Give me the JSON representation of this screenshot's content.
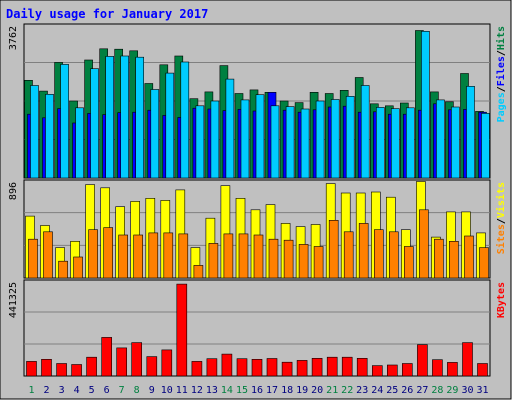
{
  "chart_data": {
    "title": "Daily usage for January 2017",
    "days": [
      "1",
      "2",
      "3",
      "4",
      "5",
      "6",
      "7",
      "8",
      "9",
      "10",
      "11",
      "12",
      "13",
      "14",
      "15",
      "16",
      "17",
      "18",
      "19",
      "20",
      "21",
      "22",
      "23",
      "24",
      "25",
      "26",
      "27",
      "28",
      "29",
      "30",
      "31"
    ],
    "weekend_days": [
      "1",
      "7",
      "8",
      "14",
      "15",
      "21",
      "22",
      "28",
      "29"
    ],
    "panels": [
      {
        "type": "bar",
        "max_label": "3762",
        "ymax": 3762,
        "legend": [
          "Pages",
          "/",
          "Files",
          "/",
          "Hits"
        ],
        "legend_colors": [
          "#00ccff",
          "#000000",
          "#0000ff",
          "#000000",
          "#008040"
        ],
        "series": [
          {
            "name": "Hits",
            "color": "#008040",
            "values": [
              2450,
              2180,
              2900,
              1930,
              2960,
              3240,
              3230,
              3190,
              2370,
              2840,
              3060,
              1990,
              2160,
              2820,
              2120,
              2210,
              2150,
              1930,
              1890,
              2150,
              2120,
              2200,
              2520,
              1860,
              1810,
              1880,
              3700,
              2160,
              1910,
              2620,
              1670
            ]
          },
          {
            "name": "Files",
            "color": "#0000ff",
            "values": [
              1600,
              1510,
              1740,
              1380,
              1620,
              1590,
              1640,
              1650,
              1700,
              1570,
              1520,
              1750,
              1730,
              1690,
              1720,
              1680,
              2150,
              1700,
              1650,
              1710,
              1780,
              1800,
              1650,
              1660,
              1600,
              1600,
              1700,
              1860,
              1710,
              1720,
              1650
            ]
          },
          {
            "name": "Pages",
            "color": "#00ccff",
            "values": [
              2320,
              2100,
              2850,
              1760,
              2740,
              3050,
              3060,
              3030,
              2220,
              2630,
              2910,
              1810,
              1930,
              2480,
              1960,
              2090,
              1810,
              1790,
              1730,
              1930,
              1970,
              2050,
              2320,
              1770,
              1740,
              1760,
              3680,
              1960,
              1780,
              2300,
              1620
            ]
          }
        ]
      },
      {
        "type": "bar",
        "max_label": "896",
        "ymax": 896,
        "legend": [
          "Sites",
          "/",
          "Visits"
        ],
        "legend_colors": [
          "#ff8000",
          "#000000",
          "#ffff00"
        ],
        "series": [
          {
            "name": "Visits",
            "color": "#ffff00",
            "values": [
              590,
              500,
              290,
              350,
              890,
              860,
              680,
              730,
              760,
              740,
              840,
              290,
              570,
              880,
              760,
              650,
              700,
              520,
              490,
              510,
              900,
              810,
              810,
              820,
              770,
              460,
              920,
              390,
              630,
              630,
              430
            ]
          },
          {
            "name": "Sites",
            "color": "#ff8000",
            "values": [
              370,
              440,
              160,
              200,
              460,
              480,
              410,
              410,
              430,
              430,
              420,
              120,
              330,
              420,
              420,
              410,
              370,
              360,
              320,
              300,
              550,
              440,
              520,
              460,
              440,
              300,
              650,
              370,
              350,
              400,
              290
            ]
          }
        ]
      },
      {
        "type": "bar",
        "max_label": "441325",
        "ymax": 441325,
        "legend": [
          "KBytes"
        ],
        "legend_colors": [
          "#ff0000"
        ],
        "series": [
          {
            "name": "KBytes",
            "color": "#ff0000",
            "values": [
              70000,
              80000,
              60000,
              55000,
              90000,
              185000,
              135000,
              160000,
              93000,
              125000,
              441000,
              70000,
              83000,
              105000,
              83000,
              80000,
              84000,
              66000,
              75000,
              85000,
              90000,
              90000,
              85000,
              50000,
              53000,
              60000,
              150000,
              78000,
              65000,
              160000,
              60000
            ]
          }
        ]
      }
    ]
  },
  "colors": {
    "frame_bg": "#c0c0c0",
    "plot_bg": "#c0c0c0",
    "title": "#0000ff",
    "day_normal": "#000080",
    "day_weekend": "#008040"
  }
}
